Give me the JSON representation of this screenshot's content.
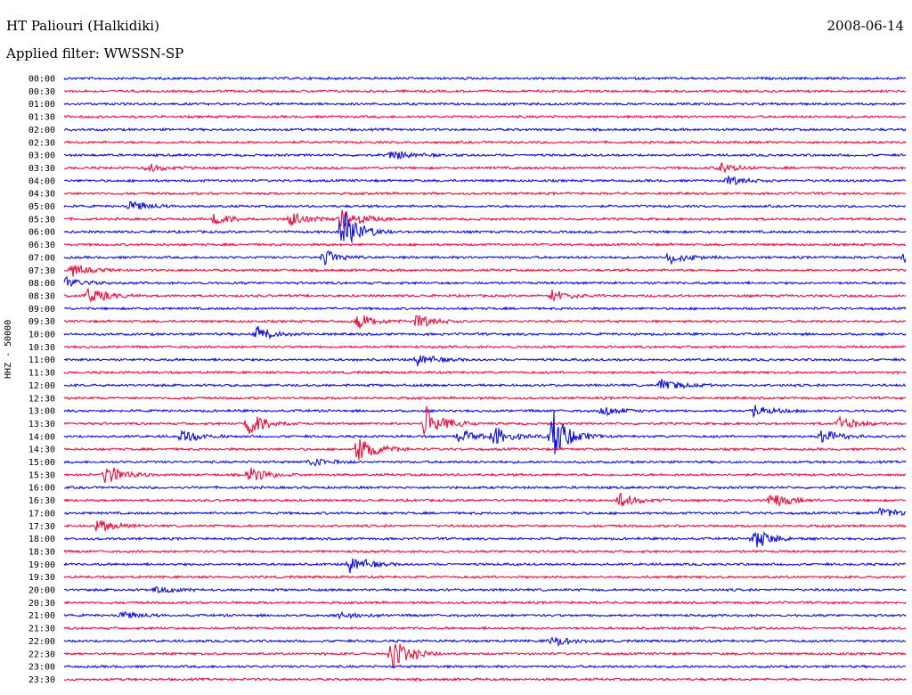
{
  "header": {
    "station": "HT Paliouri (Halkidiki)",
    "filter": "Applied filter: WWSSN-SP",
    "date": "2008-06-14"
  },
  "axis": {
    "ylabel": "HHZ - 50000"
  },
  "colors": {
    "blue": "#1010e0",
    "red": "#ee1040"
  },
  "chart_data": {
    "type": "helicorder",
    "row_interval_minutes": 30,
    "row_labels": [
      "00:00",
      "00:30",
      "01:00",
      "01:30",
      "02:00",
      "02:30",
      "03:00",
      "03:30",
      "04:00",
      "04:30",
      "05:00",
      "05:30",
      "06:00",
      "06:30",
      "07:00",
      "07:30",
      "08:00",
      "08:30",
      "09:00",
      "09:30",
      "10:00",
      "10:30",
      "11:00",
      "11:30",
      "12:00",
      "12:30",
      "13:00",
      "13:30",
      "14:00",
      "14:30",
      "15:00",
      "15:30",
      "16:00",
      "16:30",
      "17:00",
      "17:30",
      "18:00",
      "18:30",
      "19:00",
      "19:30",
      "20:00",
      "20:30",
      "21:00",
      "21:30",
      "22:00",
      "22:30",
      "23:00",
      "23:30"
    ],
    "row_colors": [
      "blue",
      "red"
    ],
    "events": [
      {
        "row": 6,
        "x": 0.39,
        "amp": 7
      },
      {
        "row": 7,
        "x": 0.1,
        "amp": 5
      },
      {
        "row": 7,
        "x": 0.78,
        "amp": 6
      },
      {
        "row": 8,
        "x": 0.79,
        "amp": 6
      },
      {
        "row": 10,
        "x": 0.08,
        "amp": 7
      },
      {
        "row": 11,
        "x": 0.18,
        "amp": 8
      },
      {
        "row": 11,
        "x": 0.27,
        "amp": 10
      },
      {
        "row": 11,
        "x": 0.33,
        "amp": 18
      },
      {
        "row": 12,
        "x": 0.33,
        "amp": 30
      },
      {
        "row": 14,
        "x": 0.31,
        "amp": 9
      },
      {
        "row": 14,
        "x": 0.72,
        "amp": 8
      },
      {
        "row": 14,
        "x": 1.0,
        "amp": 10
      },
      {
        "row": 15,
        "x": 0.01,
        "amp": 7
      },
      {
        "row": 16,
        "x": 0.0,
        "amp": 9
      },
      {
        "row": 17,
        "x": 0.03,
        "amp": 11
      },
      {
        "row": 17,
        "x": 0.58,
        "amp": 8
      },
      {
        "row": 19,
        "x": 0.35,
        "amp": 10
      },
      {
        "row": 19,
        "x": 0.42,
        "amp": 9
      },
      {
        "row": 20,
        "x": 0.23,
        "amp": 9
      },
      {
        "row": 22,
        "x": 0.42,
        "amp": 8
      },
      {
        "row": 24,
        "x": 0.71,
        "amp": 8
      },
      {
        "row": 26,
        "x": 0.64,
        "amp": 7
      },
      {
        "row": 26,
        "x": 0.82,
        "amp": 8
      },
      {
        "row": 27,
        "x": 0.22,
        "amp": 18
      },
      {
        "row": 27,
        "x": 0.43,
        "amp": 22
      },
      {
        "row": 27,
        "x": 0.92,
        "amp": 9
      },
      {
        "row": 28,
        "x": 0.14,
        "amp": 9
      },
      {
        "row": 28,
        "x": 0.47,
        "amp": 8
      },
      {
        "row": 28,
        "x": 0.51,
        "amp": 14
      },
      {
        "row": 28,
        "x": 0.58,
        "amp": 32
      },
      {
        "row": 28,
        "x": 0.9,
        "amp": 10
      },
      {
        "row": 29,
        "x": 0.35,
        "amp": 20
      },
      {
        "row": 30,
        "x": 0.29,
        "amp": 6
      },
      {
        "row": 31,
        "x": 0.05,
        "amp": 14
      },
      {
        "row": 31,
        "x": 0.22,
        "amp": 12
      },
      {
        "row": 33,
        "x": 0.66,
        "amp": 9
      },
      {
        "row": 33,
        "x": 0.84,
        "amp": 10
      },
      {
        "row": 34,
        "x": 0.97,
        "amp": 8
      },
      {
        "row": 35,
        "x": 0.04,
        "amp": 9
      },
      {
        "row": 36,
        "x": 0.82,
        "amp": 14
      },
      {
        "row": 38,
        "x": 0.34,
        "amp": 12
      },
      {
        "row": 40,
        "x": 0.11,
        "amp": 5
      },
      {
        "row": 42,
        "x": 0.07,
        "amp": 5
      },
      {
        "row": 42,
        "x": 0.33,
        "amp": 5
      },
      {
        "row": 44,
        "x": 0.58,
        "amp": 8
      },
      {
        "row": 45,
        "x": 0.39,
        "amp": 22
      }
    ]
  }
}
